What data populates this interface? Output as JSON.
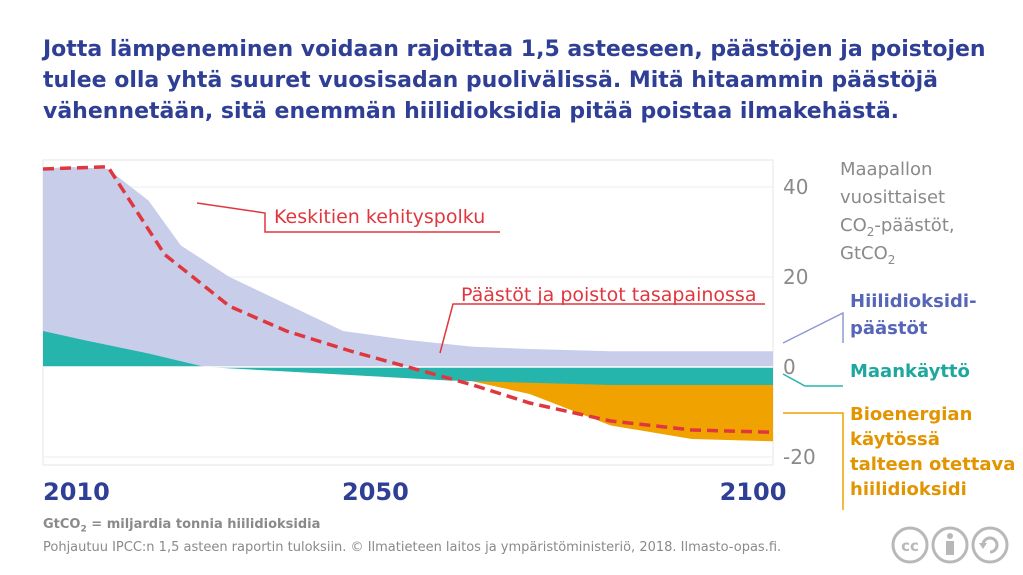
{
  "title": {
    "line1": "Jotta lämpeneminen voidaan rajoittaa 1,5 asteeseen, päästöjen ja poistojen",
    "line2": "tulee olla yhtä suuret vuosisadan puolivälissä. Mitä hitaammin päästöjä",
    "line3": "vähennetään, sitä enemmän hiilidioksidia pitää poistaa ilmakehästä."
  },
  "chart_data": {
    "type": "area",
    "xlim": [
      2010,
      2100
    ],
    "ylim": [
      -22,
      45
    ],
    "x_ticks": [
      "2010",
      "2050",
      "2100"
    ],
    "y_ticks": [
      "40",
      "20",
      "0",
      "-20"
    ],
    "ylabel": {
      "line1": "Maapallon",
      "line2": "vuosittaiset",
      "line3_pre": "CO",
      "line3_sub": "2",
      "line3_post": "-päästöt,",
      "line4_pre": "GtCO",
      "line4_sub": "2"
    },
    "series": [
      {
        "name": "Hiilidioksidipäästöt",
        "label_lines": [
          "Hiilidioksidi-",
          "päästöt"
        ],
        "color": "#c8cde9",
        "x": [
          2010,
          2013,
          2018,
          2023,
          2027,
          2033,
          2040,
          2047,
          2055,
          2063,
          2070,
          2080,
          2090,
          2100
        ],
        "y": [
          44,
          44.5,
          44,
          37,
          27,
          20,
          14,
          8,
          6,
          4.5,
          4,
          3.5,
          3.5,
          3.5
        ]
      },
      {
        "name": "Maankäyttö",
        "label_lines": [
          "Maankäyttö"
        ],
        "color": "#26b5ad",
        "x": [
          2010,
          2015,
          2023,
          2030,
          2040,
          2050,
          2060,
          2070,
          2080,
          2090,
          2100
        ],
        "y": [
          8,
          6,
          3,
          0,
          -1,
          -2,
          -3,
          -3.5,
          -4,
          -4,
          -4
        ]
      },
      {
        "name": "Bioenergian käytössä talteen otettava hiilidioksidi",
        "label_lines": [
          "Bioenergian",
          "käytössä",
          "talteen otettava",
          "hiilidioksidi"
        ],
        "color": "#efa200",
        "x": [
          2010,
          2028,
          2040,
          2050,
          2060,
          2070,
          2080,
          2090,
          2100
        ],
        "y": [
          0,
          0,
          -0.5,
          -1,
          -2,
          -6,
          -13,
          -16,
          -16.5
        ]
      }
    ],
    "lines": [
      {
        "name": "Päästöt ja poistot tasapainossa",
        "color": "#e0373f",
        "dashed": true,
        "x": [
          2010,
          2018,
          2025,
          2033,
          2040,
          2048,
          2055,
          2063,
          2070,
          2080,
          2090,
          2100
        ],
        "y": [
          44,
          44.5,
          25,
          13.5,
          8,
          3.5,
          0,
          -4,
          -8,
          -12,
          -14,
          -14.5
        ]
      }
    ],
    "annotations": [
      "Keskitien kehityspolku",
      "Päästöt ja poistot tasapainossa"
    ],
    "colors": {
      "emissions_label": "#5566b8",
      "landuse_label": "#1ea79f",
      "bio_label": "#e29500",
      "annotation": "#e0373f",
      "axis_text": "#8a8a8a",
      "title": "#2f3f96"
    }
  },
  "footer": {
    "unit_pre": "GtCO",
    "unit_sub": "2",
    "unit_post": " = miljardia tonnia hiilidioksidia",
    "source": "Pohjautuu IPCC:n 1,5 asteen raportin tuloksiin. © Ilmatieteen laitos ja ympäristöministeriö, 2018. Ilmasto-opas.fi."
  },
  "icons": [
    "cc-icon",
    "by-icon",
    "sa-icon"
  ]
}
